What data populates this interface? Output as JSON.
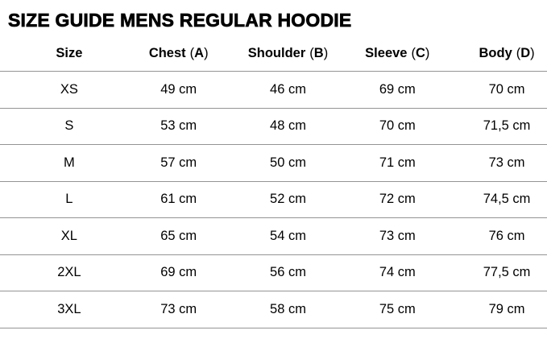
{
  "title": "SIZE GUIDE MENS REGULAR HOODIE",
  "colors": {
    "background": "#ffffff",
    "text": "#000000",
    "divider": "#949494"
  },
  "table": {
    "headers": {
      "size": {
        "label": "Size"
      },
      "chest": {
        "label": "Chest",
        "open": "(",
        "code": "A",
        "close": ")"
      },
      "shoulder": {
        "label": "Shoulder",
        "open": "(",
        "code": "B",
        "close": ")"
      },
      "sleeve": {
        "label": "Sleeve",
        "open": "(",
        "code": "C",
        "close": ")"
      },
      "body": {
        "label": "Body",
        "open": "(",
        "code": "D",
        "close": ")"
      }
    },
    "rows": [
      {
        "size": "XS",
        "chest": "49 cm",
        "shoulder": "46 cm",
        "sleeve": "69 cm",
        "body": "70 cm"
      },
      {
        "size": "S",
        "chest": "53 cm",
        "shoulder": "48 cm",
        "sleeve": "70 cm",
        "body": "71,5 cm"
      },
      {
        "size": "M",
        "chest": "57 cm",
        "shoulder": "50 cm",
        "sleeve": "71 cm",
        "body": "73 cm"
      },
      {
        "size": "L",
        "chest": "61 cm",
        "shoulder": "52 cm",
        "sleeve": "72 cm",
        "body": "74,5 cm"
      },
      {
        "size": "XL",
        "chest": "65 cm",
        "shoulder": "54 cm",
        "sleeve": "73 cm",
        "body": "76 cm"
      },
      {
        "size": "2XL",
        "chest": "69 cm",
        "shoulder": "56 cm",
        "sleeve": "74 cm",
        "body": "77,5 cm"
      },
      {
        "size": "3XL",
        "chest": "73 cm",
        "shoulder": "58 cm",
        "sleeve": "75 cm",
        "body": "79 cm"
      }
    ]
  }
}
